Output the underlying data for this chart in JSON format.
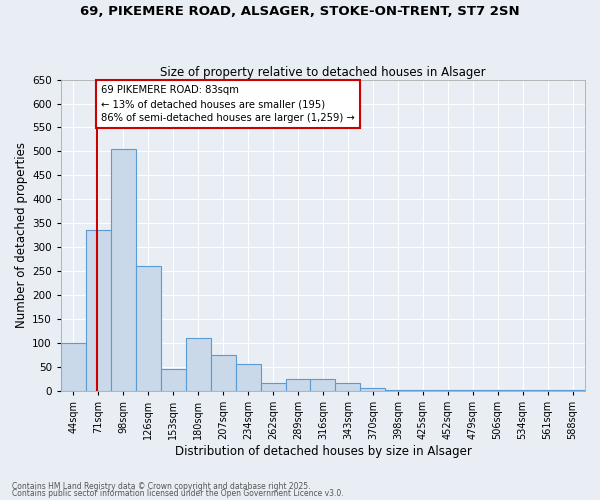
{
  "title1": "69, PIKEMERE ROAD, ALSAGER, STOKE-ON-TRENT, ST7 2SN",
  "title2": "Size of property relative to detached houses in Alsager",
  "xlabel": "Distribution of detached houses by size in Alsager",
  "ylabel": "Number of detached properties",
  "footnote1": "Contains HM Land Registry data © Crown copyright and database right 2025.",
  "footnote2": "Contains public sector information licensed under the Open Government Licence v3.0.",
  "bin_labels": [
    "44sqm",
    "71sqm",
    "98sqm",
    "126sqm",
    "153sqm",
    "180sqm",
    "207sqm",
    "234sqm",
    "262sqm",
    "289sqm",
    "316sqm",
    "343sqm",
    "370sqm",
    "398sqm",
    "425sqm",
    "452sqm",
    "479sqm",
    "506sqm",
    "534sqm",
    "561sqm",
    "588sqm"
  ],
  "bar_heights": [
    100,
    335,
    505,
    260,
    45,
    110,
    75,
    55,
    15,
    25,
    25,
    15,
    5,
    2,
    2,
    2,
    2,
    2,
    2,
    2,
    2
  ],
  "bar_color": "#c9d9ea",
  "bar_edge_color": "#5b9bd5",
  "bg_color": "#e8eef4",
  "plot_bg_color": "#e8eef4",
  "grid_color": "#ffffff",
  "property_line_color": "#cc0000",
  "annotation_text": "69 PIKEMERE ROAD: 83sqm\n← 13% of detached houses are smaller (195)\n86% of semi-detached houses are larger (1,259) →",
  "annotation_box_color": "#cc0000",
  "ylim": [
    0,
    650
  ],
  "yticks": [
    0,
    50,
    100,
    150,
    200,
    250,
    300,
    350,
    400,
    450,
    500,
    550,
    600,
    650
  ]
}
